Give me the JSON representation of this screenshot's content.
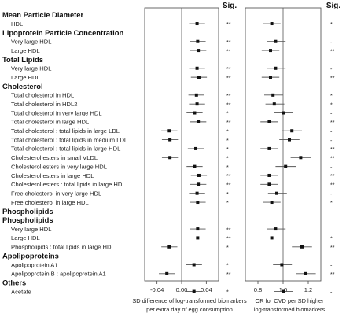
{
  "chart_data": {
    "type": "forest",
    "sig_header": "Sig.",
    "sections": [
      {
        "header": "Mean Particle Diameter",
        "items": [
          0
        ]
      },
      {
        "header": "Lipoprotein Particle Concentration",
        "items": [
          1,
          2
        ]
      },
      {
        "header": "Total Lipids",
        "items": [
          3,
          4
        ]
      },
      {
        "header": "Cholesterol",
        "items": [
          5,
          6,
          7,
          8,
          9,
          10,
          11,
          12,
          13,
          14,
          15,
          16,
          17,
          18
        ]
      },
      {
        "header": "Phospholipids",
        "items": [
          19,
          20,
          21
        ]
      },
      {
        "header": "Apolipoproteins",
        "items": [
          22,
          23
        ]
      },
      {
        "header": "Others",
        "items": [
          24
        ]
      }
    ],
    "labels": [
      "HDL",
      "Very large HDL",
      "Large HDL",
      "Very large HDL",
      "Large HDL",
      "Total cholesterol in HDL",
      "Total cholesterol in HDL2",
      "Total cholesterol in very large HDL",
      "Total cholesterol in large HDL",
      "Total cholesterol : total lipids in large LDL",
      "Total cholesterol : total lipids in medium LDL",
      "Total cholesterol : total lipids in large HDL",
      "Cholesterol esters in small VLDL",
      "Cholesterol esters in very large HDL",
      "Cholesterol esters in large HDL",
      "Cholesterol esters : total lipids in large HDL",
      "Free cholesterol in very large HDL",
      "Free cholesterol in large HDL",
      "Phospholipids",
      "Very large HDL",
      "Large HDL",
      "Phospholipids : total lipids in large HDL",
      "Apolipoprotein A1",
      "Apolipoprotein B : apolipoprotein A1",
      "Acetate"
    ],
    "left_panel": {
      "xlim": [
        -0.06,
        0.06
      ],
      "ticks": [
        -0.04,
        0,
        0.04
      ],
      "tick_labels": [
        "-0.04",
        "0.00",
        "0.04"
      ],
      "ref": 0,
      "xlabel": [
        "SD difference of log-transformed biomarkers",
        "per extra day of egg consumption"
      ],
      "points": [
        {
          "est": 0.025,
          "lo": 0.012,
          "hi": 0.038
        },
        {
          "est": 0.026,
          "lo": 0.013,
          "hi": 0.039
        },
        {
          "est": 0.027,
          "lo": 0.014,
          "hi": 0.04
        },
        {
          "est": 0.025,
          "lo": 0.012,
          "hi": 0.038
        },
        {
          "est": 0.028,
          "lo": 0.015,
          "hi": 0.041
        },
        {
          "est": 0.024,
          "lo": 0.011,
          "hi": 0.037
        },
        {
          "est": 0.025,
          "lo": 0.012,
          "hi": 0.038
        },
        {
          "est": 0.021,
          "lo": 0.008,
          "hi": 0.034
        },
        {
          "est": 0.027,
          "lo": 0.014,
          "hi": 0.04
        },
        {
          "est": -0.02,
          "lo": -0.033,
          "hi": -0.007
        },
        {
          "est": -0.019,
          "lo": -0.032,
          "hi": -0.006
        },
        {
          "est": 0.023,
          "lo": 0.01,
          "hi": 0.036
        },
        {
          "est": -0.019,
          "lo": -0.032,
          "hi": -0.006
        },
        {
          "est": 0.021,
          "lo": 0.008,
          "hi": 0.034
        },
        {
          "est": 0.028,
          "lo": 0.015,
          "hi": 0.041
        },
        {
          "est": 0.027,
          "lo": 0.014,
          "hi": 0.04
        },
        {
          "est": 0.025,
          "lo": 0.012,
          "hi": 0.038
        },
        {
          "est": 0.026,
          "lo": 0.013,
          "hi": 0.039
        },
        null,
        {
          "est": 0.026,
          "lo": 0.013,
          "hi": 0.039
        },
        {
          "est": 0.026,
          "lo": 0.013,
          "hi": 0.039
        },
        {
          "est": -0.02,
          "lo": -0.033,
          "hi": -0.007
        },
        {
          "est": 0.02,
          "lo": 0.007,
          "hi": 0.033
        },
        {
          "est": -0.024,
          "lo": -0.037,
          "hi": -0.011
        },
        {
          "est": 0.02,
          "lo": 0.007,
          "hi": 0.033
        }
      ],
      "sig": [
        "**",
        "**",
        "**",
        "**",
        "**",
        "**",
        "**",
        "*",
        "**",
        "*",
        "*",
        "*",
        "*",
        "*",
        "**",
        "**",
        "*",
        "*",
        "",
        "**",
        "**",
        "*",
        "*",
        "**",
        "*"
      ]
    },
    "right_panel": {
      "xlim": [
        0.7,
        1.3
      ],
      "ticks": [
        0.8,
        1.0,
        1.2
      ],
      "tick_labels": [
        "0.8",
        "1.0",
        "1.2"
      ],
      "ref": 1.0,
      "xlabel": [
        "OR for CVD per SD higher",
        "log-transformed biomarkers"
      ],
      "points": [
        {
          "est": 0.91,
          "lo": 0.84,
          "hi": 0.98
        },
        {
          "est": 0.94,
          "lo": 0.87,
          "hi": 1.02
        },
        {
          "est": 0.9,
          "lo": 0.83,
          "hi": 0.97
        },
        {
          "est": 0.94,
          "lo": 0.87,
          "hi": 1.02
        },
        {
          "est": 0.9,
          "lo": 0.83,
          "hi": 0.97
        },
        {
          "est": 0.92,
          "lo": 0.85,
          "hi": 1.0
        },
        {
          "est": 0.93,
          "lo": 0.86,
          "hi": 1.01
        },
        {
          "est": 1.0,
          "lo": 0.93,
          "hi": 1.08
        },
        {
          "est": 0.89,
          "lo": 0.82,
          "hi": 0.96
        },
        {
          "est": 1.07,
          "lo": 0.99,
          "hi": 1.15
        },
        {
          "est": 1.05,
          "lo": 0.97,
          "hi": 1.13
        },
        {
          "est": 0.89,
          "lo": 0.82,
          "hi": 0.96
        },
        {
          "est": 1.14,
          "lo": 1.06,
          "hi": 1.22
        },
        {
          "est": 1.02,
          "lo": 0.94,
          "hi": 1.1
        },
        {
          "est": 0.89,
          "lo": 0.82,
          "hi": 0.96
        },
        {
          "est": 0.89,
          "lo": 0.82,
          "hi": 0.96
        },
        {
          "est": 0.95,
          "lo": 0.88,
          "hi": 1.03
        },
        {
          "est": 0.91,
          "lo": 0.84,
          "hi": 0.98
        },
        null,
        {
          "est": 0.94,
          "lo": 0.87,
          "hi": 1.02
        },
        {
          "est": 0.91,
          "lo": 0.84,
          "hi": 0.98
        },
        {
          "est": 1.15,
          "lo": 1.07,
          "hi": 1.23
        },
        {
          "est": 0.99,
          "lo": 0.92,
          "hi": 1.07
        },
        {
          "est": 1.18,
          "lo": 1.1,
          "hi": 1.26
        },
        {
          "est": 1.0,
          "lo": 0.93,
          "hi": 1.08
        }
      ],
      "sig": [
        "*",
        "-",
        "**",
        "-",
        "**",
        "*",
        "*",
        "-",
        "**",
        "-",
        "-",
        "**",
        "**",
        "-",
        "**",
        "**",
        "-",
        "*",
        "",
        "-",
        "*",
        "**",
        "-",
        "**",
        "-"
      ]
    }
  }
}
